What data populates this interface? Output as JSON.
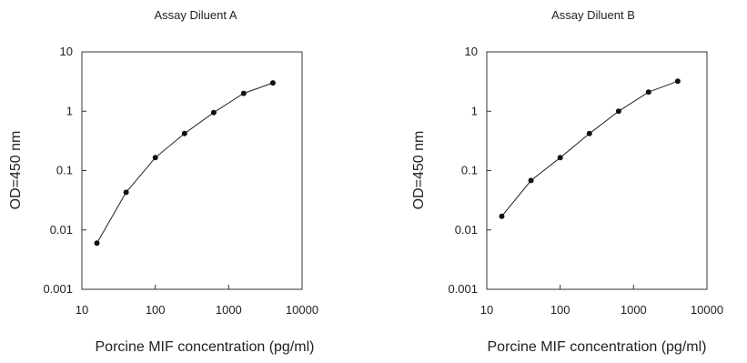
{
  "chart_data": [
    {
      "type": "line",
      "title": "Assay Diluent A",
      "xlabel": "Porcine MIF concentration (pg/ml)",
      "ylabel": "OD=450 nm",
      "x_scale": "log",
      "y_scale": "log",
      "xlim": [
        10,
        10000
      ],
      "ylim": [
        0.001,
        10
      ],
      "x_ticks": [
        "10",
        "100",
        "1000",
        "10000"
      ],
      "y_ticks": [
        "0.001",
        "0.01",
        "0.1",
        "1",
        "10"
      ],
      "grid": false,
      "marker": "circle",
      "series": [
        {
          "x": [
            16,
            40,
            100,
            250,
            625,
            1600,
            4000
          ],
          "y": [
            0.006,
            0.043,
            0.165,
            0.42,
            0.95,
            2.0,
            3.0
          ]
        }
      ]
    },
    {
      "type": "line",
      "title": "Assay Diluent B",
      "xlabel": "Porcine MIF concentration (pg/ml)",
      "ylabel": "OD=450 nm",
      "x_scale": "log",
      "y_scale": "log",
      "xlim": [
        10,
        10000
      ],
      "ylim": [
        0.001,
        10
      ],
      "x_ticks": [
        "10",
        "100",
        "1000",
        "10000"
      ],
      "y_ticks": [
        "0.001",
        "0.01",
        "0.1",
        "1",
        "10"
      ],
      "grid": false,
      "marker": "circle",
      "series": [
        {
          "x": [
            16,
            40,
            100,
            250,
            625,
            1600,
            4000
          ],
          "y": [
            0.017,
            0.068,
            0.165,
            0.42,
            1.0,
            2.1,
            3.2
          ]
        }
      ]
    }
  ]
}
